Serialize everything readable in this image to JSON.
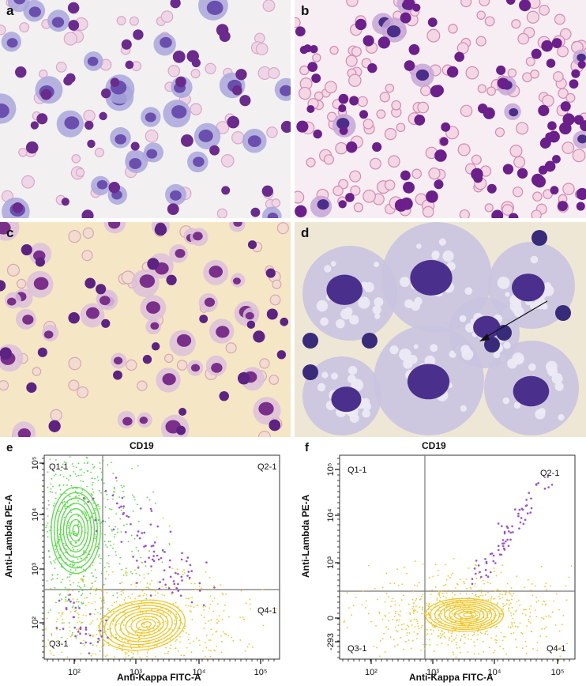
{
  "panels": {
    "a": {
      "letter": "a"
    },
    "b": {
      "letter": "b"
    },
    "c": {
      "letter": "c"
    },
    "d": {
      "letter": "d"
    },
    "e": {
      "letter": "e"
    },
    "f": {
      "letter": "f"
    }
  },
  "chart_data": [
    {
      "type": "scatter",
      "panel": "e",
      "title": "CD19",
      "xlabel": "Anti-Kappa FITC-A",
      "ylabel": "Anti-Lambda PE-A",
      "x_ticks": [
        "10²",
        "10³",
        "10⁴",
        "10⁵"
      ],
      "y_ticks": [
        "10²",
        "10³",
        "10⁴",
        "10⁵"
      ],
      "quadrants": [
        "Q1-1",
        "Q2-1",
        "Q3-1",
        "Q4-1"
      ],
      "populations": [
        {
          "quadrant": "Q1-1",
          "color": "#55dd44",
          "center_x_log": 1.9,
          "center_y_log": 3.6
        },
        {
          "quadrant": "Q4-1",
          "color": "#f2c628",
          "center_x_log": 3.0,
          "center_y_log": 2.2
        },
        {
          "quadrant": "Q2-1",
          "color": "#9b4fd1",
          "scatter": true
        }
      ]
    },
    {
      "type": "scatter",
      "panel": "f",
      "title": "CD19",
      "xlabel": "Anti-Kappa FITC-A",
      "ylabel": "Anti-Lambda PE-A",
      "x_ticks": [
        "10²",
        "10³",
        "10⁴",
        "10⁵"
      ],
      "y_ticks": [
        "-293",
        "0",
        "10³",
        "10⁴",
        "10⁵"
      ],
      "quadrants": [
        "Q1-1",
        "Q2-1",
        "Q3-1",
        "Q4-1"
      ],
      "populations": [
        {
          "quadrant": "Q4-1",
          "color": "#f2c628",
          "center_x_log": 3.5,
          "center_y_log": 0
        },
        {
          "quadrant": "Q2-1",
          "color": "#9b4fd1",
          "scatter": true
        }
      ]
    }
  ]
}
